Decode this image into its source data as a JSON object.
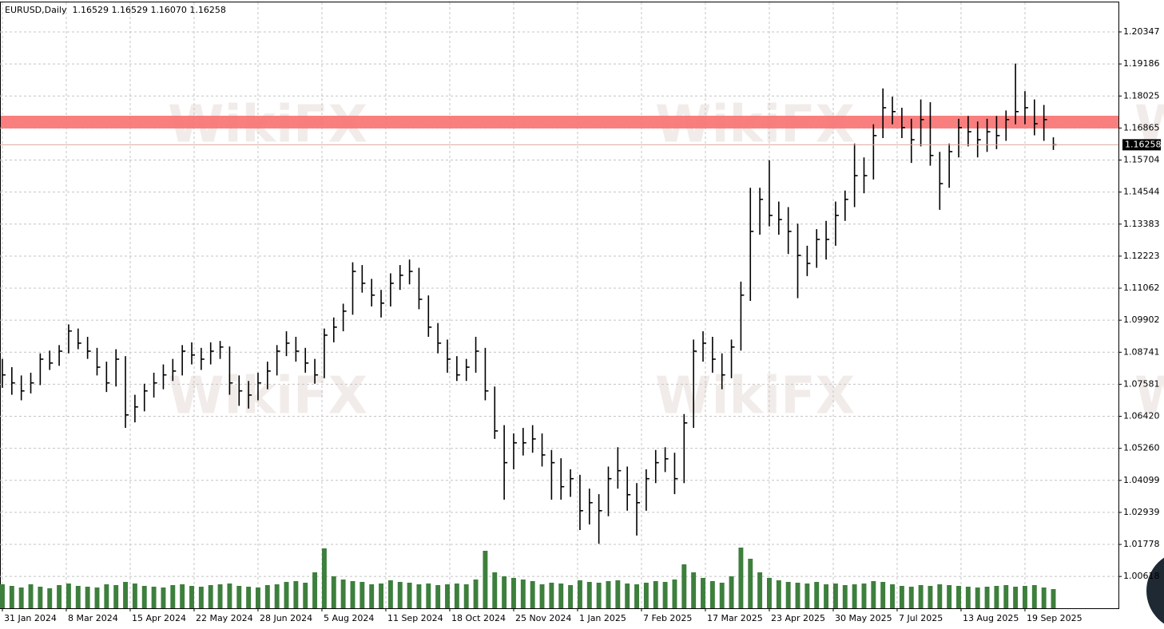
{
  "chart_data": {
    "type": "ohlc",
    "title": "EURUSD,Daily  1.16529 1.16529 1.16070 1.16258",
    "x": [
      0,
      4,
      8,
      12,
      16,
      20,
      24,
      28,
      32,
      36,
      40,
      44,
      48,
      52,
      56,
      60,
      64,
      68,
      72,
      76,
      80,
      84,
      88,
      92,
      96,
      100,
      104,
      108,
      112,
      116,
      120,
      124,
      128,
      132,
      136,
      140,
      144,
      148,
      152,
      156,
      160,
      164,
      168,
      172,
      176,
      180,
      184,
      188,
      192,
      196,
      200,
      204,
      208,
      212,
      216,
      220,
      224,
      228,
      232,
      236,
      240,
      244,
      248,
      252,
      256,
      260,
      264,
      268,
      272,
      276,
      280,
      284,
      288,
      292,
      296,
      300,
      304,
      308,
      312,
      316,
      320,
      324,
      328,
      332,
      336,
      340,
      344,
      348,
      352,
      356,
      360,
      364,
      368,
      372,
      376,
      380,
      384,
      388,
      392,
      396,
      400,
      404,
      408,
      412,
      416,
      420,
      424,
      428,
      432,
      436,
      440,
      444
    ],
    "high": [
      1.085,
      1.082,
      1.079,
      1.08,
      1.087,
      1.088,
      1.09,
      1.0975,
      1.096,
      1.093,
      1.089,
      1.084,
      1.0885,
      1.086,
      1.072,
      1.076,
      1.08,
      1.083,
      1.085,
      1.09,
      1.091,
      1.089,
      1.091,
      1.0915,
      1.0895,
      1.079,
      1.077,
      1.08,
      1.084,
      1.09,
      1.095,
      1.093,
      1.089,
      1.085,
      1.096,
      1.1,
      1.105,
      1.12,
      1.119,
      1.114,
      1.11,
      1.116,
      1.119,
      1.121,
      1.118,
      1.108,
      1.098,
      1.092,
      1.086,
      1.085,
      1.093,
      1.089,
      1.075,
      1.061,
      1.058,
      1.06,
      1.061,
      1.058,
      1.052,
      1.049,
      1.045,
      1.043,
      1.038,
      1.036,
      1.046,
      1.053,
      1.046,
      1.04,
      1.045,
      1.052,
      1.053,
      1.051,
      1.065,
      1.092,
      1.095,
      1.093,
      1.087,
      1.092,
      1.113,
      1.147,
      1.147,
      1.157,
      1.142,
      1.14,
      1.134,
      1.126,
      1.132,
      1.135,
      1.142,
      1.146,
      1.163,
      1.158,
      1.17,
      1.183,
      1.18,
      1.176,
      1.172,
      1.179,
      1.178,
      1.16,
      1.163,
      1.172,
      1.173,
      1.171,
      1.172,
      1.173,
      1.175,
      1.192,
      1.182,
      1.179,
      1.177,
      1.16529
    ],
    "low": [
      1.0745,
      1.072,
      1.07,
      1.0725,
      1.0755,
      1.081,
      1.0825,
      1.087,
      1.0885,
      1.085,
      1.079,
      1.073,
      1.075,
      1.06,
      1.062,
      1.066,
      1.071,
      1.074,
      1.077,
      1.079,
      1.083,
      1.081,
      1.083,
      1.085,
      1.072,
      1.068,
      1.067,
      1.07,
      1.074,
      1.079,
      1.086,
      1.084,
      1.08,
      1.076,
      1.078,
      1.091,
      1.095,
      1.101,
      1.109,
      1.104,
      1.1,
      1.104,
      1.11,
      1.112,
      1.103,
      1.093,
      1.087,
      1.08,
      1.077,
      1.077,
      1.08,
      1.07,
      1.056,
      1.034,
      1.045,
      1.05,
      1.051,
      1.046,
      1.034,
      1.034,
      1.035,
      1.023,
      1.025,
      1.018,
      1.028,
      1.038,
      1.03,
      1.021,
      1.03,
      1.04,
      1.044,
      1.036,
      1.04,
      1.06,
      1.084,
      1.08,
      1.074,
      1.078,
      1.088,
      1.106,
      1.13,
      1.133,
      1.13,
      1.123,
      1.107,
      1.115,
      1.118,
      1.121,
      1.126,
      1.135,
      1.14,
      1.145,
      1.15,
      1.165,
      1.17,
      1.165,
      1.156,
      1.162,
      1.155,
      1.139,
      1.147,
      1.158,
      1.162,
      1.158,
      1.16,
      1.161,
      1.164,
      1.17,
      1.17,
      1.166,
      1.164,
      1.1607
    ],
    "close": [
      1.0792,
      1.0763,
      1.0734,
      1.0763,
      1.0849,
      1.0835,
      1.0878,
      1.0951,
      1.0907,
      1.0878,
      1.082,
      1.0763,
      1.0849,
      1.0647,
      1.0676,
      1.0734,
      1.0763,
      1.0792,
      1.0806,
      1.0878,
      1.0864,
      1.0849,
      1.0878,
      1.0893,
      1.0763,
      1.0734,
      1.0719,
      1.0763,
      1.0806,
      1.0878,
      1.0907,
      1.0878,
      1.0835,
      1.0792,
      1.0936,
      1.0965,
      1.1023,
      1.1167,
      1.1124,
      1.1081,
      1.1052,
      1.1124,
      1.1153,
      1.1167,
      1.1066,
      1.0965,
      1.0907,
      1.0849,
      1.0792,
      1.082,
      1.0878,
      1.0734,
      1.0589,
      1.0474,
      1.0546,
      1.0546,
      1.056,
      1.0502,
      1.0474,
      1.0387,
      1.0416,
      1.03,
      1.0329,
      1.03,
      1.0416,
      1.0445,
      1.0358,
      1.0329,
      1.0416,
      1.0474,
      1.0488,
      1.0416,
      1.0618,
      1.0878,
      1.0907,
      1.0849,
      1.0792,
      1.0893,
      1.1081,
      1.1312,
      1.1428,
      1.137,
      1.1355,
      1.1312,
      1.1225,
      1.1196,
      1.1283,
      1.1283,
      1.137,
      1.1428,
      1.1514,
      1.1514,
      1.1659,
      1.176,
      1.1746,
      1.1688,
      1.1644,
      1.1717,
      1.1587,
      1.1485,
      1.1601,
      1.1688,
      1.1673,
      1.1644,
      1.1673,
      1.1659,
      1.1717,
      1.1746,
      1.176,
      1.1702,
      1.1717,
      1.16258
    ],
    "volume": [
      30,
      28,
      26,
      30,
      27,
      25,
      29,
      31,
      28,
      27,
      26,
      30,
      29,
      33,
      31,
      28,
      27,
      26,
      29,
      30,
      28,
      27,
      29,
      30,
      31,
      28,
      27,
      26,
      29,
      30,
      33,
      34,
      32,
      45,
      75,
      40,
      36,
      34,
      33,
      30,
      31,
      35,
      33,
      32,
      30,
      31,
      29,
      30,
      31,
      30,
      36,
      72,
      45,
      40,
      38,
      36,
      34,
      30,
      32,
      31,
      29,
      35,
      33,
      32,
      34,
      35,
      31,
      30,
      32,
      34,
      33,
      36,
      55,
      45,
      38,
      34,
      32,
      40,
      76,
      62,
      45,
      38,
      35,
      33,
      32,
      31,
      33,
      30,
      31,
      29,
      30,
      31,
      34,
      33,
      30,
      28,
      27,
      29,
      28,
      30,
      29,
      28,
      27,
      26,
      27,
      28,
      29,
      27,
      28,
      29,
      26,
      24
    ],
    "color": "#000000",
    "volume_color": "#3d7f3d",
    "xlim": [
      -1,
      471.5
    ],
    "ylim": [
      0.99466,
      1.21503
    ],
    "xticks": [
      {
        "value": 0,
        "label": "31 Jan 2024"
      },
      {
        "value": 27,
        "label": "8 Mar 2024"
      },
      {
        "value": 54,
        "label": "15 Apr 2024"
      },
      {
        "value": 81,
        "label": "22 May 2024"
      },
      {
        "value": 108,
        "label": "28 Jun 2024"
      },
      {
        "value": 135,
        "label": "5 Aug 2024"
      },
      {
        "value": 162,
        "label": "11 Sep 2024"
      },
      {
        "value": 189,
        "label": "18 Oct 2024"
      },
      {
        "value": 216,
        "label": "25 Nov 2024"
      },
      {
        "value": 243,
        "label": "1 Jan 2025"
      },
      {
        "value": 270,
        "label": "7 Feb 2025"
      },
      {
        "value": 297,
        "label": "17 Mar 2025"
      },
      {
        "value": 324,
        "label": "23 Apr 2025"
      },
      {
        "value": 351,
        "label": "30 May 2025"
      },
      {
        "value": 378,
        "label": "7 Jul 2025"
      },
      {
        "value": 405,
        "label": "13 Aug 2025"
      },
      {
        "value": 432,
        "label": "19 Sep 2025"
      }
    ],
    "yticks": [
      1.20347,
      1.19186,
      1.18025,
      1.16865,
      1.15704,
      1.14544,
      1.13383,
      1.12223,
      1.11062,
      1.09902,
      1.08741,
      1.07581,
      {
        "value": 1.0642,
        "label": "1.06420"
      },
      {
        "value": 1.0526,
        "label": "1.05260"
      },
      1.04099,
      1.02939,
      1.01778,
      1.00618
    ],
    "grid": true,
    "current_price": {
      "value": 1.16258,
      "label": "1.16258"
    },
    "zone": {
      "from": 1.1685,
      "to": 1.1731,
      "color": "#f87171"
    },
    "watermark": "WikiFX"
  }
}
